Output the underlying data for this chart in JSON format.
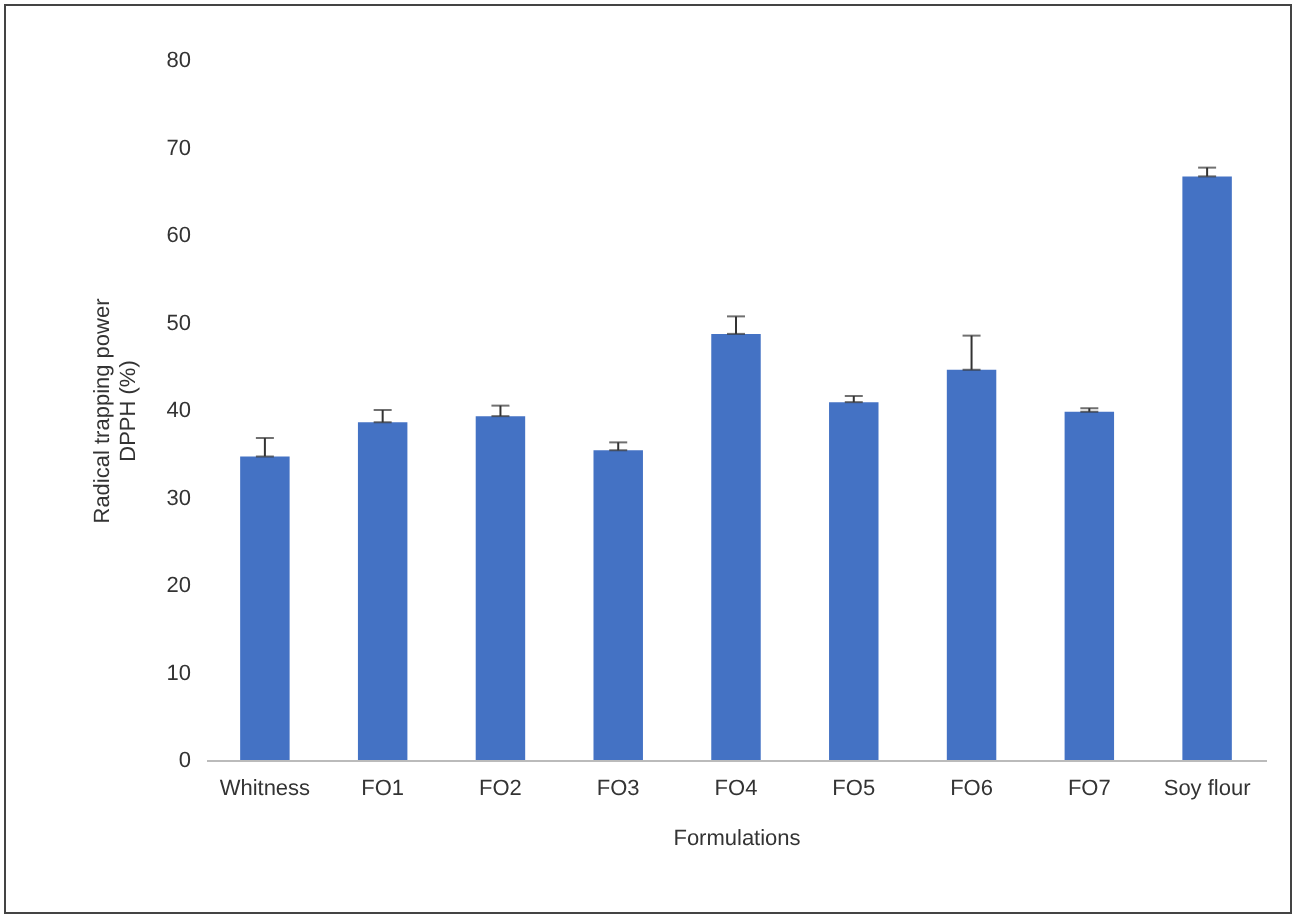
{
  "chart_data": {
    "type": "bar",
    "xlabel": "Formulations",
    "ylabel": "Radical trapping power\nDPPH (%)",
    "categories": [
      "Whitness",
      "FO1",
      "FO2",
      "FO3",
      "FO4",
      "FO5",
      "FO6",
      "FO7",
      "Soy flour"
    ],
    "values": [
      34.7,
      38.6,
      39.3,
      35.4,
      48.7,
      40.9,
      44.6,
      39.8,
      66.7
    ],
    "errors": [
      [
        34.7,
        36.8
      ],
      [
        38.6,
        40.0
      ],
      [
        39.3,
        40.5
      ],
      [
        35.4,
        36.3
      ],
      [
        48.7,
        50.7
      ],
      [
        40.9,
        41.6
      ],
      [
        44.6,
        48.5
      ],
      [
        39.8,
        40.2
      ],
      [
        66.7,
        67.7
      ]
    ],
    "color": "#4472c4",
    "ylim": [
      0,
      80
    ],
    "yticks": [
      0,
      10,
      20,
      30,
      40,
      50,
      60,
      70,
      80
    ],
    "grid": false
  }
}
